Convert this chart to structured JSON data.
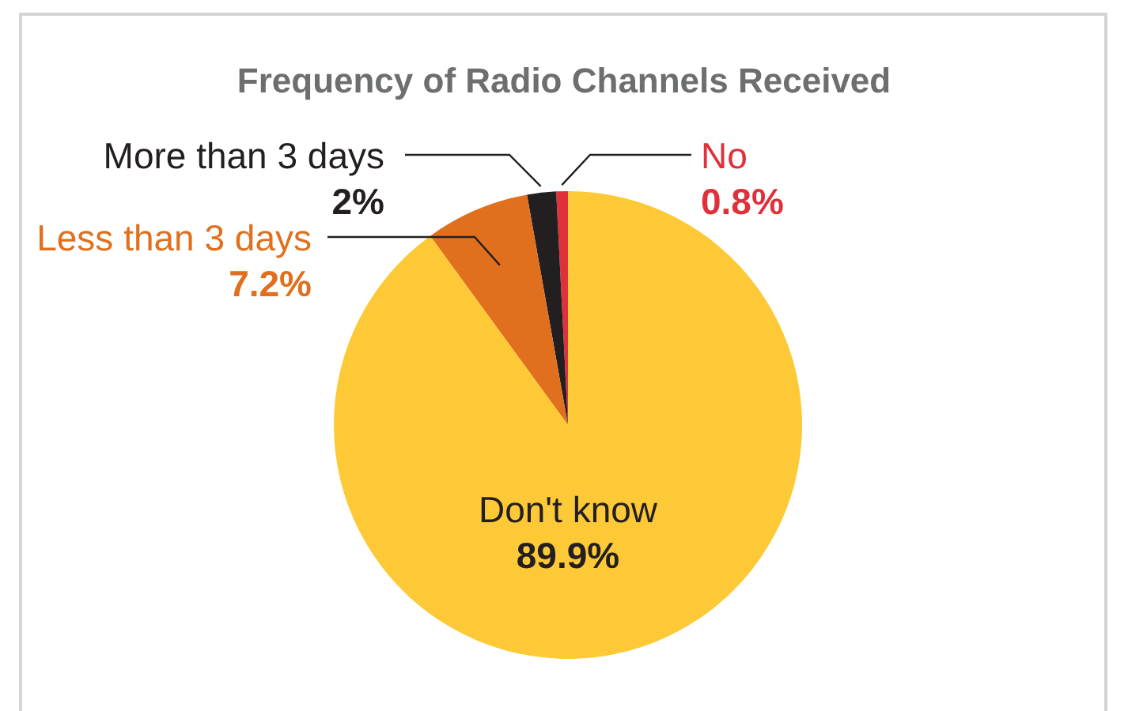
{
  "chart_data": {
    "type": "pie",
    "title": "Frequency of Radio Channels Received",
    "categories": [
      "No",
      "More than 3 days",
      "Less than 3 days",
      "Don't know"
    ],
    "values": [
      0.8,
      2,
      7.2,
      89.9
    ],
    "colors": [
      "#e0313b",
      "#231f20",
      "#e0701e",
      "#fec937"
    ],
    "value_labels": [
      "0.8%",
      "2%",
      "7.2%",
      "89.9%"
    ]
  }
}
